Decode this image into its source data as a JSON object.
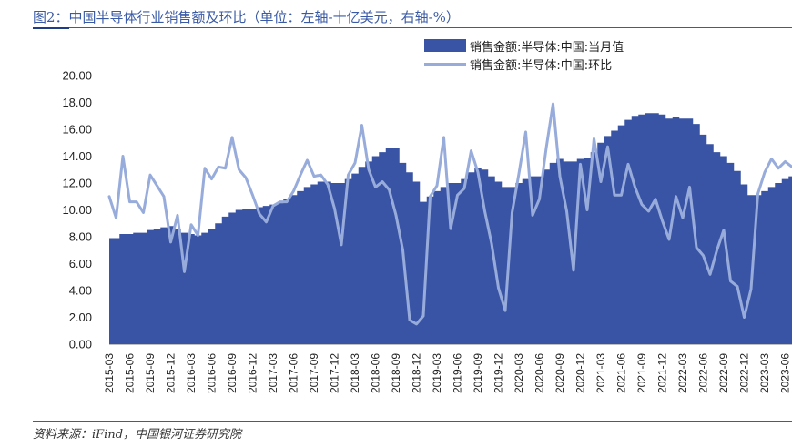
{
  "figure_title": "图2：中国半导体行业销售额及环比（单位：左轴-十亿美元，右轴-%）",
  "source_note": "资料来源：iFind，中国银河证券研究院",
  "colors": {
    "area": "#3954a4",
    "line": "#98acdc",
    "title": "#3a5aa6"
  },
  "chart_data": {
    "type": "area",
    "legend_position": "top-right",
    "grid": false,
    "ylim": [
      0,
      20
    ],
    "yticks": [
      "0.00",
      "2.00",
      "4.00",
      "6.00",
      "8.00",
      "10.00",
      "12.00",
      "14.00",
      "16.00",
      "18.00",
      "20.00"
    ],
    "xtick_labels": [
      "2015-03",
      "2015-06",
      "2015-09",
      "2015-12",
      "2016-03",
      "2016-06",
      "2016-09",
      "2016-12",
      "2017-03",
      "2017-06",
      "2017-09",
      "2017-12",
      "2018-03",
      "2018-06",
      "2018-09",
      "2018-12",
      "2019-03",
      "2019-06",
      "2019-09",
      "2019-12",
      "2020-03",
      "2020-06",
      "2020-09",
      "2020-12",
      "2021-03",
      "2021-06",
      "2021-09",
      "2021-12",
      "2022-03",
      "2022-06",
      "2022-09",
      "2022-12",
      "2023-03",
      "2023-06"
    ],
    "x": [
      "2015-03",
      "2015-04",
      "2015-05",
      "2015-06",
      "2015-07",
      "2015-08",
      "2015-09",
      "2015-10",
      "2015-11",
      "2015-12",
      "2016-01",
      "2016-02",
      "2016-03",
      "2016-04",
      "2016-05",
      "2016-06",
      "2016-07",
      "2016-08",
      "2016-09",
      "2016-10",
      "2016-11",
      "2016-12",
      "2017-01",
      "2017-02",
      "2017-03",
      "2017-04",
      "2017-05",
      "2017-06",
      "2017-07",
      "2017-08",
      "2017-09",
      "2017-10",
      "2017-11",
      "2017-12",
      "2018-01",
      "2018-02",
      "2018-03",
      "2018-04",
      "2018-05",
      "2018-06",
      "2018-07",
      "2018-08",
      "2018-09",
      "2018-10",
      "2018-11",
      "2018-12",
      "2019-01",
      "2019-02",
      "2019-03",
      "2019-04",
      "2019-05",
      "2019-06",
      "2019-07",
      "2019-08",
      "2019-09",
      "2019-10",
      "2019-11",
      "2019-12",
      "2020-01",
      "2020-02",
      "2020-03",
      "2020-04",
      "2020-05",
      "2020-06",
      "2020-07",
      "2020-08",
      "2020-09",
      "2020-10",
      "2020-11",
      "2020-12",
      "2021-01",
      "2021-02",
      "2021-03",
      "2021-04",
      "2021-05",
      "2021-06",
      "2021-07",
      "2021-08",
      "2021-09",
      "2021-10",
      "2021-11",
      "2021-12",
      "2022-01",
      "2022-02",
      "2022-03",
      "2022-04",
      "2022-05",
      "2022-06",
      "2022-07",
      "2022-08",
      "2022-09",
      "2022-10",
      "2022-11",
      "2022-12",
      "2023-01",
      "2023-02",
      "2023-03",
      "2023-04",
      "2023-05",
      "2023-06",
      "2023-07"
    ],
    "series": [
      {
        "name": "销售金额:半导体:中国:当月值",
        "type": "area",
        "values": [
          7.9,
          7.9,
          8.2,
          8.2,
          8.3,
          8.3,
          8.5,
          8.6,
          8.7,
          8.8,
          8.6,
          8.3,
          8.2,
          8.1,
          8.3,
          8.6,
          9.0,
          9.5,
          9.8,
          10.0,
          10.1,
          10.1,
          10.2,
          10.3,
          10.4,
          10.5,
          10.8,
          11.1,
          11.4,
          11.7,
          11.9,
          12.1,
          12.1,
          12.0,
          12.0,
          12.3,
          12.7,
          13.2,
          13.6,
          14.0,
          14.3,
          14.6,
          14.6,
          13.5,
          12.8,
          12.1,
          10.6,
          11.0,
          11.4,
          11.7,
          12.0,
          12.0,
          12.3,
          12.8,
          13.1,
          13.0,
          12.5,
          12.1,
          11.7,
          11.7,
          12.0,
          12.3,
          12.5,
          12.5,
          13.0,
          13.5,
          13.8,
          13.6,
          13.6,
          13.8,
          13.9,
          14.3,
          15.0,
          15.5,
          15.9,
          16.3,
          16.7,
          17.0,
          17.1,
          17.2,
          17.2,
          17.1,
          16.8,
          16.9,
          16.8,
          16.8,
          16.4,
          15.6,
          14.9,
          14.3,
          14.0,
          13.5,
          12.9,
          11.9,
          11.1,
          11.1,
          11.4,
          11.7,
          12.0,
          12.3,
          12.5
        ]
      },
      {
        "name": "销售金额:半导体:中国:环比",
        "type": "line",
        "values": [
          11.0,
          9.4,
          14.0,
          10.6,
          10.6,
          9.8,
          12.6,
          11.8,
          11.0,
          7.6,
          9.6,
          5.4,
          8.9,
          8.1,
          13.1,
          12.3,
          13.2,
          13.1,
          15.4,
          13.0,
          12.4,
          11.1,
          9.7,
          9.1,
          10.3,
          10.6,
          10.6,
          11.4,
          12.6,
          13.7,
          12.5,
          12.6,
          11.9,
          10.1,
          7.4,
          12.6,
          13.5,
          16.3,
          13.0,
          11.7,
          12.1,
          11.5,
          9.6,
          7.0,
          1.8,
          1.5,
          2.1,
          11.0,
          11.8,
          15.4,
          8.6,
          11.1,
          11.6,
          14.4,
          12.8,
          9.9,
          7.5,
          4.2,
          2.5,
          9.8,
          12.7,
          15.8,
          9.6,
          10.8,
          14.6,
          17.9,
          12.5,
          9.9,
          5.5,
          13.4,
          10.0,
          15.3,
          12.1,
          14.7,
          11.1,
          11.1,
          13.4,
          11.7,
          10.4,
          9.9,
          10.8,
          9.2,
          7.8,
          11.0,
          9.4,
          11.7,
          7.2,
          6.6,
          5.2,
          7.0,
          8.5,
          4.7,
          4.3,
          2.0,
          4.1,
          11.2,
          12.8,
          13.8,
          13.1,
          13.6,
          13.2
        ]
      }
    ]
  }
}
